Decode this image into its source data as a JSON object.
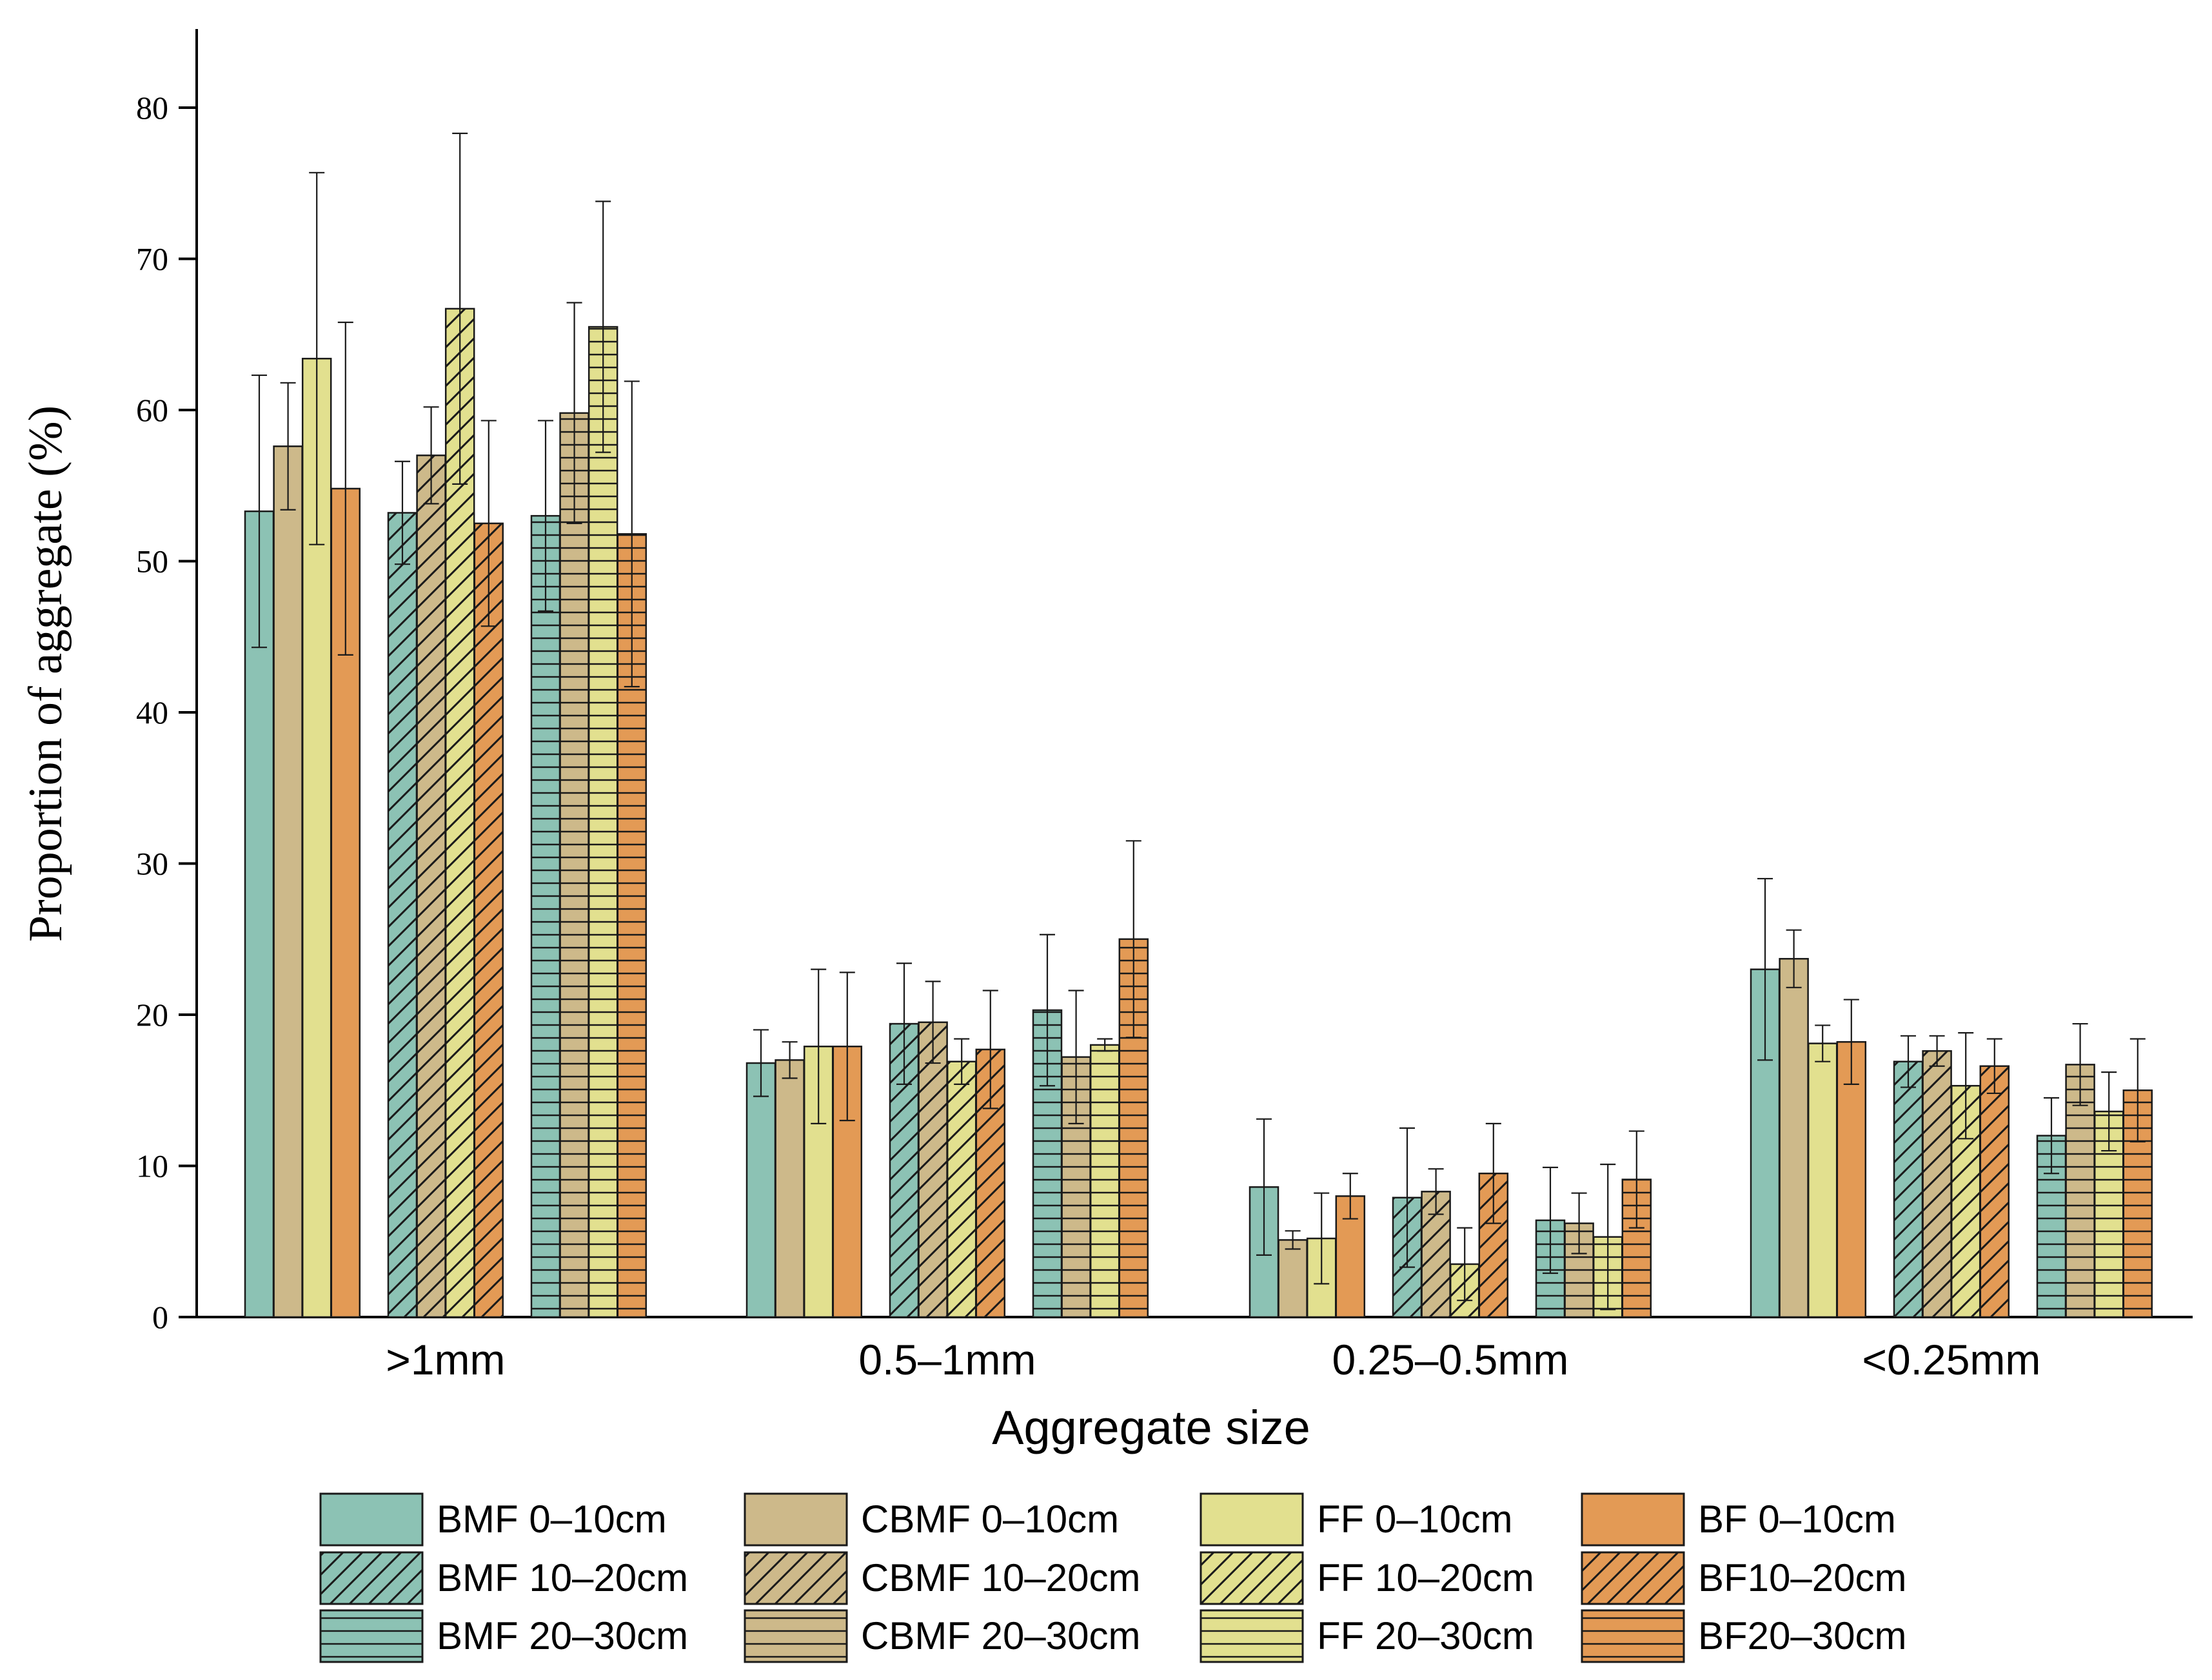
{
  "chart_data": {
    "type": "bar",
    "title": "",
    "xlabel": "Aggregate size",
    "ylabel": "Proportion of aggregate (%)",
    "ylim": [
      0,
      85
    ],
    "yticks": [
      0,
      10,
      20,
      30,
      40,
      50,
      60,
      70,
      80
    ],
    "categories": [
      ">1mm",
      "0.5–1mm",
      "0.25–0.5mm",
      "<0.25mm"
    ],
    "legend_position": "bottom",
    "colors": {
      "BMF": "#8cc2b4",
      "CBMF": "#cdb98a",
      "FF": "#e2e08f",
      "BF": "#e39a55"
    },
    "series": [
      {
        "name": "BMF 0–10cm",
        "site": "BMF",
        "pattern": "solid",
        "values": [
          53.3,
          16.8,
          8.6,
          23.0
        ],
        "errors": [
          9.0,
          2.2,
          4.5,
          6.0
        ]
      },
      {
        "name": "CBMF 0–10cm",
        "site": "CBMF",
        "pattern": "solid",
        "values": [
          57.6,
          17.0,
          5.1,
          23.7
        ],
        "errors": [
          4.2,
          1.2,
          0.6,
          1.9
        ]
      },
      {
        "name": "FF 0–10cm",
        "site": "FF",
        "pattern": "solid",
        "values": [
          63.4,
          17.9,
          5.2,
          18.1
        ],
        "errors": [
          12.3,
          5.1,
          3.0,
          1.2
        ]
      },
      {
        "name": "BF 0–10cm",
        "site": "BF",
        "pattern": "solid",
        "values": [
          54.8,
          17.9,
          8.0,
          18.2
        ],
        "errors": [
          11.0,
          4.9,
          1.5,
          2.8
        ]
      },
      {
        "name": "BMF 10–20cm",
        "site": "BMF",
        "pattern": "diagonal",
        "values": [
          53.2,
          19.4,
          7.9,
          16.9
        ],
        "errors": [
          3.4,
          4.0,
          4.6,
          1.7
        ]
      },
      {
        "name": "CBMF 10–20cm",
        "site": "CBMF",
        "pattern": "diagonal",
        "values": [
          57.0,
          19.5,
          8.3,
          17.6
        ],
        "errors": [
          3.2,
          2.7,
          1.5,
          1.0
        ]
      },
      {
        "name": "FF 10–20cm",
        "site": "FF",
        "pattern": "diagonal",
        "values": [
          66.7,
          16.9,
          3.5,
          15.3
        ],
        "errors": [
          11.6,
          1.5,
          2.4,
          3.5
        ]
      },
      {
        "name": "BF10–20cm",
        "site": "BF",
        "pattern": "diagonal",
        "values": [
          52.5,
          17.7,
          9.5,
          16.6
        ],
        "errors": [
          6.8,
          3.9,
          3.3,
          1.8
        ]
      },
      {
        "name": "BMF 20–30cm",
        "site": "BMF",
        "pattern": "horizontal",
        "values": [
          53.0,
          20.3,
          6.4,
          12.0
        ],
        "errors": [
          6.3,
          5.0,
          3.5,
          2.5
        ]
      },
      {
        "name": "CBMF 20–30cm",
        "site": "CBMF",
        "pattern": "horizontal",
        "values": [
          59.8,
          17.2,
          6.2,
          16.7
        ],
        "errors": [
          7.3,
          4.4,
          2.0,
          2.7
        ]
      },
      {
        "name": "FF 20–30cm",
        "site": "FF",
        "pattern": "horizontal",
        "values": [
          65.5,
          18.0,
          5.3,
          13.6
        ],
        "errors": [
          8.3,
          0.4,
          4.8,
          2.6
        ]
      },
      {
        "name": "BF20–30cm",
        "site": "BF",
        "pattern": "horizontal",
        "values": [
          51.8,
          25.0,
          9.1,
          15.0
        ],
        "errors": [
          10.1,
          6.5,
          3.2,
          3.4
        ]
      }
    ]
  }
}
